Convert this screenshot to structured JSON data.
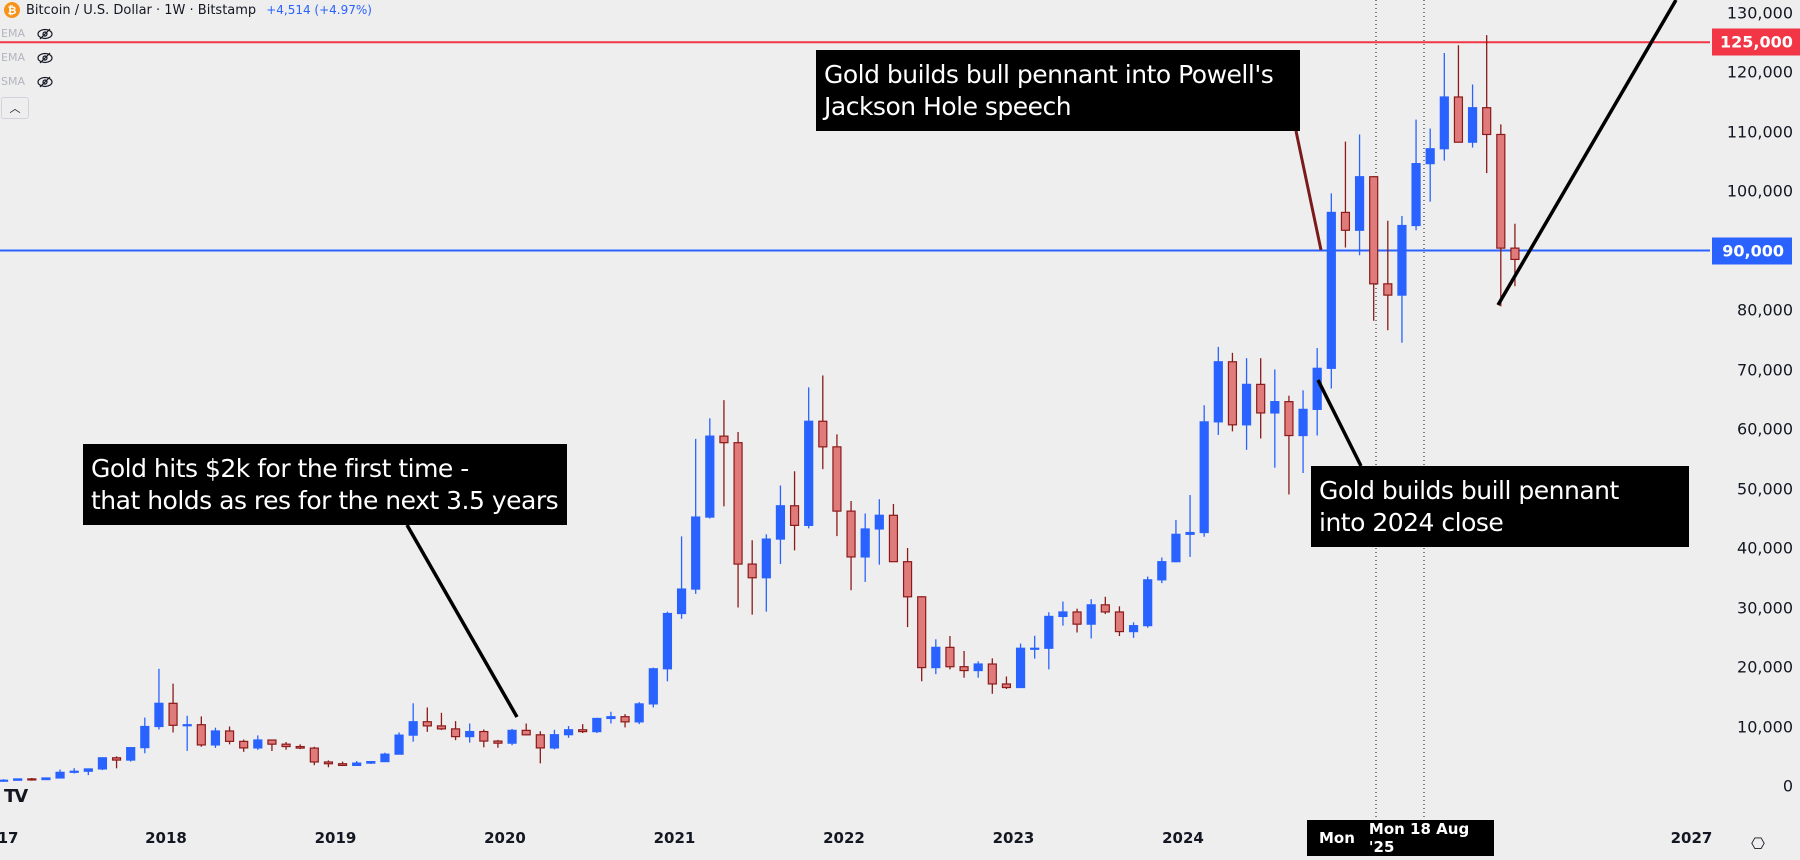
{
  "header": {
    "symbol_icon": "bitcoin-icon",
    "title": "Bitcoin / U.S. Dollar · 1W · Bitstamp",
    "change": "+4,514 (+4.97%)",
    "indicators": [
      {
        "label": "EMA",
        "icon": "eye-off-icon"
      },
      {
        "label": "EMA",
        "icon": "eye-off-icon"
      },
      {
        "label": "SMA",
        "icon": "eye-off-icon"
      }
    ],
    "collapse_icon": "chevron-up-icon"
  },
  "colors": {
    "background": "#eeeeee",
    "up": "#2962ff",
    "down_border": "#8b1a1a",
    "down_fill": "#e07b7b",
    "resistance": "#f23645",
    "support": "#2962ff"
  },
  "annotations": [
    {
      "text": "Gold hits $2k for the first time -\nthat holds as res for the next 3.5 years"
    },
    {
      "text": "Gold builds bull pennant into Powell's\nJackson Hole speech"
    },
    {
      "text": "Gold builds buill pennant\ninto 2024 close"
    }
  ],
  "crosshair_date": {
    "left": "Mon",
    "right": "Mon 18 Aug '25"
  },
  "settings_icon": "settings-icon",
  "logo": "TV",
  "chart_data": {
    "type": "candlestick",
    "interval": "1W",
    "y_scale": "linear",
    "ylim": [
      0,
      135000
    ],
    "xlim": [
      "2017-01",
      "2027-06"
    ],
    "grid": false,
    "yticks": [
      "0",
      "10,000",
      "20,000",
      "30,000",
      "40,000",
      "50,000",
      "60,000",
      "70,000",
      "80,000",
      "90,000",
      "100,000",
      "110,000",
      "120,000",
      "130,000"
    ],
    "ytick_values": [
      0,
      10000,
      20000,
      30000,
      40000,
      50000,
      60000,
      70000,
      80000,
      90000,
      100000,
      110000,
      120000,
      130000
    ],
    "xticks": [
      "17",
      "2018",
      "2019",
      "2020",
      "2021",
      "2022",
      "2023",
      "2024",
      "2027"
    ],
    "xtick_values": [
      2017,
      2018,
      2019,
      2020,
      2021,
      2022,
      2023,
      2024,
      2027
    ],
    "levels": [
      {
        "value": 125000,
        "label": "125,000",
        "color": "#f23645"
      },
      {
        "value": 90000,
        "label": "90,000",
        "color": "#2962ff"
      }
    ],
    "candles_ohlc": [
      [
        "2017-01",
        963,
        1150,
        750,
        970
      ],
      [
        "2017-02",
        970,
        1200,
        920,
        1190
      ],
      [
        "2017-03",
        1190,
        1350,
        890,
        1080
      ],
      [
        "2017-04",
        1080,
        1350,
        1060,
        1350
      ],
      [
        "2017-05",
        1350,
        2760,
        1350,
        2300
      ],
      [
        "2017-06",
        2300,
        3000,
        2100,
        2480
      ],
      [
        "2017-07",
        2480,
        2950,
        1830,
        2870
      ],
      [
        "2017-08",
        2870,
        4800,
        2670,
        4740
      ],
      [
        "2017-09",
        4740,
        4980,
        2970,
        4360
      ],
      [
        "2017-10",
        4360,
        6470,
        4110,
        6450
      ],
      [
        "2017-11",
        6450,
        11500,
        5500,
        10000
      ],
      [
        "2017-12",
        10000,
        19700,
        9500,
        13900
      ],
      [
        "2018-01",
        13900,
        17200,
        9000,
        10200
      ],
      [
        "2018-02",
        10200,
        11800,
        5900,
        10300
      ],
      [
        "2018-03",
        10300,
        11700,
        6600,
        6900
      ],
      [
        "2018-04",
        6900,
        9800,
        6400,
        9250
      ],
      [
        "2018-05",
        9250,
        10000,
        7000,
        7500
      ],
      [
        "2018-06",
        7500,
        7800,
        5750,
        6400
      ],
      [
        "2018-07",
        6400,
        8500,
        6070,
        7730
      ],
      [
        "2018-08",
        7730,
        7750,
        5880,
        7030
      ],
      [
        "2018-09",
        7030,
        7400,
        6100,
        6630
      ],
      [
        "2018-10",
        6630,
        7000,
        6200,
        6370
      ],
      [
        "2018-11",
        6370,
        6600,
        3500,
        4040
      ],
      [
        "2018-12",
        4040,
        4300,
        3150,
        3740
      ],
      [
        "2019-01",
        3740,
        4100,
        3350,
        3460
      ],
      [
        "2019-02",
        3460,
        4200,
        3400,
        3850
      ],
      [
        "2019-03",
        3850,
        4150,
        3700,
        4100
      ],
      [
        "2019-04",
        4100,
        5600,
        4080,
        5350
      ],
      [
        "2019-05",
        5350,
        9000,
        5330,
        8550
      ],
      [
        "2019-06",
        8550,
        13900,
        7450,
        10800
      ],
      [
        "2019-07",
        10800,
        13200,
        9100,
        10100
      ],
      [
        "2019-08",
        10100,
        12300,
        9400,
        9600
      ],
      [
        "2019-09",
        9600,
        10900,
        7700,
        8300
      ],
      [
        "2019-10",
        8300,
        10500,
        7300,
        9150
      ],
      [
        "2019-11",
        9150,
        9500,
        6500,
        7550
      ],
      [
        "2019-12",
        7550,
        7750,
        6430,
        7200
      ],
      [
        "2020-01",
        7200,
        9600,
        6850,
        9350
      ],
      [
        "2020-02",
        9350,
        10500,
        8500,
        8600
      ],
      [
        "2020-03",
        8600,
        9200,
        3800,
        6400
      ],
      [
        "2020-04",
        6400,
        9450,
        6150,
        8620
      ],
      [
        "2020-05",
        8620,
        10080,
        8100,
        9450
      ],
      [
        "2020-06",
        9450,
        10400,
        8900,
        9140
      ],
      [
        "2020-07",
        9140,
        11450,
        8900,
        11350
      ],
      [
        "2020-08",
        11350,
        12480,
        10500,
        11650
      ],
      [
        "2020-09",
        11650,
        12080,
        9850,
        10780
      ],
      [
        "2020-10",
        10780,
        14100,
        10400,
        13800
      ],
      [
        "2020-11",
        13800,
        19900,
        13200,
        19700
      ],
      [
        "2020-12",
        19700,
        29300,
        17600,
        28990
      ],
      [
        "2021-01",
        28990,
        41950,
        28100,
        33100
      ],
      [
        "2021-02",
        33100,
        58350,
        32300,
        45200
      ],
      [
        "2021-03",
        45200,
        61800,
        44950,
        58800
      ],
      [
        "2021-04",
        58800,
        64850,
        47000,
        57700
      ],
      [
        "2021-05",
        57700,
        59500,
        30000,
        37300
      ],
      [
        "2021-06",
        37300,
        41300,
        28800,
        35000
      ],
      [
        "2021-07",
        35000,
        42300,
        29300,
        41500
      ],
      [
        "2021-08",
        41500,
        50500,
        37300,
        47100
      ],
      [
        "2021-09",
        47100,
        52900,
        39600,
        43800
      ],
      [
        "2021-10",
        43800,
        67000,
        43300,
        61300
      ],
      [
        "2021-11",
        61300,
        69000,
        53250,
        57000
      ],
      [
        "2021-12",
        57000,
        59100,
        42000,
        46200
      ],
      [
        "2022-01",
        46200,
        47900,
        32900,
        38500
      ],
      [
        "2022-02",
        38500,
        45800,
        34300,
        43200
      ],
      [
        "2022-03",
        43200,
        48200,
        37200,
        45500
      ],
      [
        "2022-04",
        45500,
        47400,
        37700,
        37700
      ],
      [
        "2022-05",
        37700,
        40000,
        26700,
        31800
      ],
      [
        "2022-06",
        31800,
        31900,
        17600,
        19900
      ],
      [
        "2022-07",
        19900,
        24650,
        18800,
        23300
      ],
      [
        "2022-08",
        23300,
        25200,
        19600,
        20050
      ],
      [
        "2022-09",
        20050,
        22700,
        18200,
        19400
      ],
      [
        "2022-10",
        19400,
        20950,
        18200,
        20500
      ],
      [
        "2022-11",
        20500,
        21450,
        15500,
        17150
      ],
      [
        "2022-12",
        17150,
        18400,
        16300,
        16550
      ],
      [
        "2023-01",
        16550,
        23950,
        16500,
        23150
      ],
      [
        "2023-02",
        23150,
        25250,
        21400,
        23150
      ],
      [
        "2023-03",
        23150,
        29200,
        19600,
        28500
      ],
      [
        "2023-04",
        28500,
        31000,
        26950,
        29250
      ],
      [
        "2023-05",
        29250,
        29800,
        25800,
        27200
      ],
      [
        "2023-06",
        27200,
        31400,
        24800,
        30450
      ],
      [
        "2023-07",
        30450,
        31800,
        28900,
        29250
      ],
      [
        "2023-08",
        29250,
        30200,
        25200,
        25950
      ],
      [
        "2023-09",
        25950,
        27500,
        24900,
        26950
      ],
      [
        "2023-10",
        26950,
        35200,
        26600,
        34650
      ],
      [
        "2023-11",
        34650,
        38400,
        34100,
        37700
      ],
      [
        "2023-12",
        37700,
        44700,
        37600,
        42300
      ],
      [
        "2024-01",
        42300,
        48900,
        38500,
        42600
      ],
      [
        "2024-02",
        42600,
        64000,
        41900,
        61200
      ],
      [
        "2024-03",
        61200,
        73800,
        59000,
        71300
      ],
      [
        "2024-04",
        71300,
        72800,
        59600,
        60700
      ],
      [
        "2024-05",
        60700,
        71900,
        56500,
        67500
      ],
      [
        "2024-06",
        67500,
        71900,
        58400,
        62700
      ],
      [
        "2024-07",
        62700,
        70000,
        53500,
        64600
      ],
      [
        "2024-08",
        64600,
        65600,
        49000,
        58900
      ],
      [
        "2024-09",
        58900,
        66500,
        52600,
        63300
      ],
      [
        "2024-10",
        63300,
        73600,
        58900,
        70200
      ],
      [
        "2024-11",
        70200,
        99600,
        66800,
        96400
      ],
      [
        "2024-12",
        96400,
        108300,
        90500,
        93400
      ],
      [
        "2025-01",
        93400,
        109500,
        89200,
        102400
      ],
      [
        "2025-02",
        102400,
        102500,
        78200,
        84400
      ],
      [
        "2025-03",
        84400,
        95000,
        76600,
        82500
      ],
      [
        "2025-04",
        82500,
        95800,
        74500,
        94200
      ],
      [
        "2025-05",
        94200,
        112000,
        93400,
        104600
      ],
      [
        "2025-06",
        104600,
        110500,
        98200,
        107100
      ],
      [
        "2025-07",
        107100,
        123200,
        105100,
        115800
      ],
      [
        "2025-08",
        115800,
        124500,
        108700,
        108200
      ],
      [
        "2025-09",
        108200,
        117900,
        107300,
        114000
      ],
      [
        "2025-10",
        114000,
        126200,
        103000,
        109500
      ],
      [
        "2025-11",
        109500,
        111200,
        80600,
        90400
      ],
      [
        "2025-12",
        90400,
        94500,
        84000,
        88500
      ]
    ]
  }
}
